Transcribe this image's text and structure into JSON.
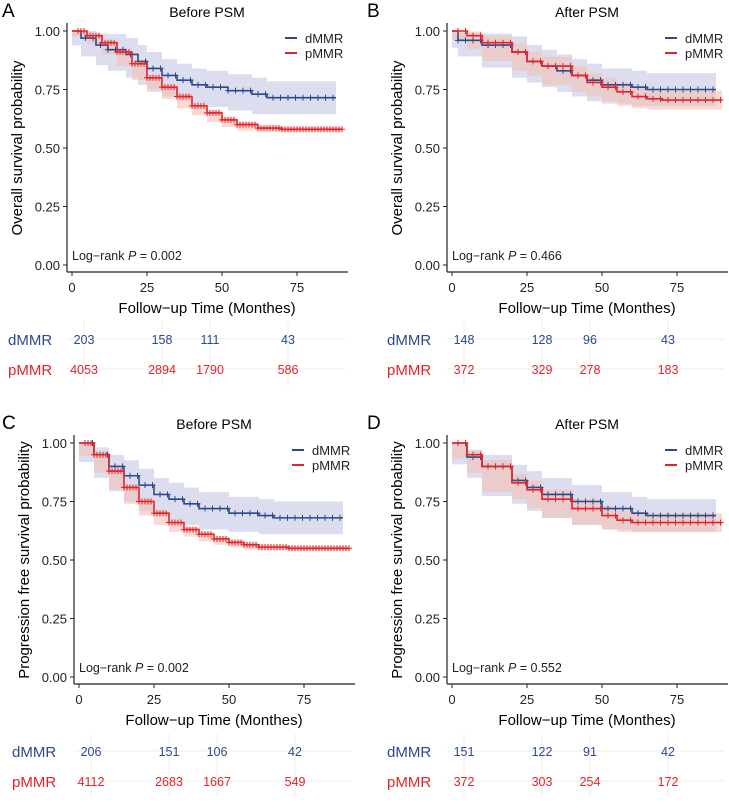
{
  "colors": {
    "dMMR": "#2b4a8c",
    "pMMR": "#e3232a",
    "dMMR_ci": "#c5c8e4",
    "pMMR_ci": "#f5c0b4"
  },
  "chart_data": [
    {
      "panel": "A",
      "type": "line",
      "title": "Before PSM",
      "ylabel": "Overall survival probability",
      "xlabel": "Follow−up Time (Monthes)",
      "xticks": [
        "0",
        "25",
        "50",
        "75"
      ],
      "yticks": [
        "0.00",
        "0.25",
        "0.50",
        "0.75",
        "1.00"
      ],
      "xlim": [
        0,
        90
      ],
      "ylim": [
        0,
        1
      ],
      "legend": "top-right",
      "annotation": {
        "prefix": "Log−rank ",
        "p": "P",
        "suffix": " = 0.002"
      },
      "series": [
        {
          "name": "dMMR",
          "ci": 0.07,
          "points": [
            [
              0,
              1
            ],
            [
              3,
              0.97
            ],
            [
              8,
              0.94
            ],
            [
              12,
              0.92
            ],
            [
              18,
              0.9
            ],
            [
              22,
              0.87
            ],
            [
              25,
              0.84
            ],
            [
              30,
              0.81
            ],
            [
              35,
              0.79
            ],
            [
              40,
              0.77
            ],
            [
              45,
              0.76
            ],
            [
              52,
              0.745
            ],
            [
              60,
              0.73
            ],
            [
              65,
              0.715
            ],
            [
              88,
              0.715
            ]
          ]
        },
        {
          "name": "pMMR",
          "ci": 0.01,
          "points": [
            [
              0,
              1
            ],
            [
              5,
              0.98
            ],
            [
              10,
              0.95
            ],
            [
              15,
              0.91
            ],
            [
              20,
              0.86
            ],
            [
              25,
              0.8
            ],
            [
              30,
              0.76
            ],
            [
              35,
              0.72
            ],
            [
              40,
              0.68
            ],
            [
              45,
              0.65
            ],
            [
              50,
              0.62
            ],
            [
              55,
              0.6
            ],
            [
              62,
              0.585
            ],
            [
              70,
              0.58
            ],
            [
              90,
              0.58
            ]
          ]
        }
      ],
      "risk_table": [
        {
          "label": "dMMR",
          "values": [
            "203",
            "158",
            "111",
            "43"
          ]
        },
        {
          "label": "pMMR",
          "values": [
            "4053",
            "2894",
            "1790",
            "586"
          ]
        }
      ]
    },
    {
      "panel": "B",
      "type": "line",
      "title": "After PSM",
      "ylabel": "Overall survival probability",
      "xlabel": "Follow−up Time (Monthes)",
      "xticks": [
        "0",
        "25",
        "50",
        "75"
      ],
      "yticks": [
        "0.00",
        "0.25",
        "0.50",
        "0.75",
        "1.00"
      ],
      "xlim": [
        0,
        90
      ],
      "ylim": [
        0,
        1
      ],
      "legend": "top-right",
      "annotation": {
        "prefix": "Log−rank ",
        "p": "P",
        "suffix": " = 0.466"
      },
      "series": [
        {
          "name": "dMMR",
          "ci": 0.07,
          "points": [
            [
              0,
              1
            ],
            [
              2,
              0.96
            ],
            [
              10,
              0.94
            ],
            [
              20,
              0.91
            ],
            [
              25,
              0.87
            ],
            [
              30,
              0.85
            ],
            [
              35,
              0.83
            ],
            [
              40,
              0.81
            ],
            [
              45,
              0.79
            ],
            [
              50,
              0.77
            ],
            [
              60,
              0.76
            ],
            [
              65,
              0.75
            ],
            [
              88,
              0.75
            ]
          ]
        },
        {
          "name": "pMMR",
          "ci": 0.04,
          "points": [
            [
              0,
              1
            ],
            [
              5,
              0.98
            ],
            [
              10,
              0.95
            ],
            [
              20,
              0.91
            ],
            [
              25,
              0.87
            ],
            [
              30,
              0.85
            ],
            [
              40,
              0.81
            ],
            [
              45,
              0.78
            ],
            [
              50,
              0.76
            ],
            [
              55,
              0.74
            ],
            [
              60,
              0.72
            ],
            [
              65,
              0.71
            ],
            [
              70,
              0.705
            ],
            [
              90,
              0.705
            ]
          ]
        }
      ],
      "risk_table": [
        {
          "label": "dMMR",
          "values": [
            "148",
            "128",
            "96",
            "43"
          ]
        },
        {
          "label": "pMMR",
          "values": [
            "372",
            "329",
            "278",
            "183"
          ]
        }
      ]
    },
    {
      "panel": "C",
      "type": "line",
      "title": "Before PSM",
      "ylabel": "Progression free survival probability",
      "xlabel": "Follow−up Time (Monthes)",
      "xticks": [
        "0",
        "25",
        "50",
        "75"
      ],
      "yticks": [
        "0.00",
        "0.25",
        "0.50",
        "0.75",
        "1.00"
      ],
      "xlim": [
        0,
        90
      ],
      "ylim": [
        0,
        1
      ],
      "legend": "top-right",
      "annotation": {
        "prefix": "Log−rank ",
        "p": "P",
        "suffix": " = 0.002"
      },
      "series": [
        {
          "name": "dMMR",
          "ci": 0.07,
          "points": [
            [
              0,
              1
            ],
            [
              5,
              0.95
            ],
            [
              10,
              0.9
            ],
            [
              15,
              0.86
            ],
            [
              20,
              0.82
            ],
            [
              25,
              0.78
            ],
            [
              30,
              0.76
            ],
            [
              35,
              0.74
            ],
            [
              40,
              0.72
            ],
            [
              50,
              0.7
            ],
            [
              60,
              0.69
            ],
            [
              65,
              0.68
            ],
            [
              88,
              0.68
            ]
          ]
        },
        {
          "name": "pMMR",
          "ci": 0.01,
          "points": [
            [
              0,
              1
            ],
            [
              5,
              0.95
            ],
            [
              10,
              0.88
            ],
            [
              15,
              0.81
            ],
            [
              20,
              0.75
            ],
            [
              25,
              0.7
            ],
            [
              30,
              0.66
            ],
            [
              35,
              0.63
            ],
            [
              40,
              0.61
            ],
            [
              45,
              0.59
            ],
            [
              50,
              0.575
            ],
            [
              55,
              0.565
            ],
            [
              60,
              0.555
            ],
            [
              70,
              0.55
            ],
            [
              90,
              0.55
            ]
          ]
        }
      ],
      "risk_table": [
        {
          "label": "dMMR",
          "values": [
            "206",
            "151",
            "106",
            "42"
          ]
        },
        {
          "label": "pMMR",
          "values": [
            "4112",
            "2683",
            "1667",
            "549"
          ]
        }
      ]
    },
    {
      "panel": "D",
      "type": "line",
      "title": "After PSM",
      "ylabel": "Progression free survival probability",
      "xlabel": "Follow−up Time (Monthes)",
      "xticks": [
        "0",
        "25",
        "50",
        "75"
      ],
      "yticks": [
        "0.00",
        "0.25",
        "0.50",
        "0.75",
        "1.00"
      ],
      "xlim": [
        0,
        90
      ],
      "ylim": [
        0,
        1
      ],
      "legend": "top-right",
      "annotation": {
        "prefix": "Log−rank ",
        "p": "P",
        "suffix": " = 0.552"
      },
      "series": [
        {
          "name": "dMMR",
          "ci": 0.07,
          "points": [
            [
              0,
              1
            ],
            [
              5,
              0.94
            ],
            [
              10,
              0.9
            ],
            [
              20,
              0.84
            ],
            [
              25,
              0.81
            ],
            [
              30,
              0.78
            ],
            [
              40,
              0.75
            ],
            [
              50,
              0.72
            ],
            [
              60,
              0.7
            ],
            [
              65,
              0.69
            ],
            [
              88,
              0.69
            ]
          ]
        },
        {
          "name": "pMMR",
          "ci": 0.04,
          "points": [
            [
              0,
              1
            ],
            [
              5,
              0.95
            ],
            [
              10,
              0.9
            ],
            [
              20,
              0.83
            ],
            [
              25,
              0.8
            ],
            [
              30,
              0.76
            ],
            [
              40,
              0.72
            ],
            [
              50,
              0.69
            ],
            [
              55,
              0.67
            ],
            [
              60,
              0.66
            ],
            [
              90,
              0.66
            ]
          ]
        }
      ],
      "risk_table": [
        {
          "label": "dMMR",
          "values": [
            "151",
            "122",
            "91",
            "42"
          ]
        },
        {
          "label": "pMMR",
          "values": [
            "372",
            "303",
            "254",
            "172"
          ]
        }
      ]
    }
  ]
}
